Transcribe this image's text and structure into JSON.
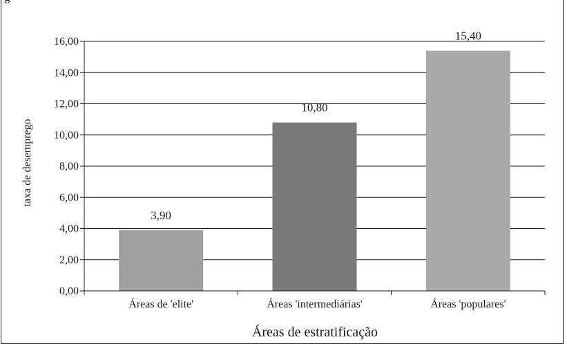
{
  "page": {
    "top_caption": "g"
  },
  "chart_data": {
    "type": "bar",
    "categories": [
      "Áreas de 'elite'",
      "Áreas 'intermediárias'",
      "Áreas 'populares'"
    ],
    "values": [
      3.9,
      10.8,
      15.4
    ],
    "value_labels": [
      "3,90",
      "10,80",
      "15,40"
    ],
    "bar_colors": [
      "#a0a0a2",
      "#79797b",
      "#a9a9ab"
    ],
    "xlabel": "Áreas de estratificação",
    "ylabel": "taxa de desemprego",
    "ylim": [
      0,
      16
    ],
    "yticks": [
      0,
      2,
      4,
      6,
      8,
      10,
      12,
      14,
      16
    ],
    "ytick_labels": [
      "0,00",
      "2,00",
      "4,00",
      "6,00",
      "8,00",
      "10,00",
      "12,00",
      "14,00",
      "16,00"
    ],
    "grid": true,
    "legend": "none"
  }
}
